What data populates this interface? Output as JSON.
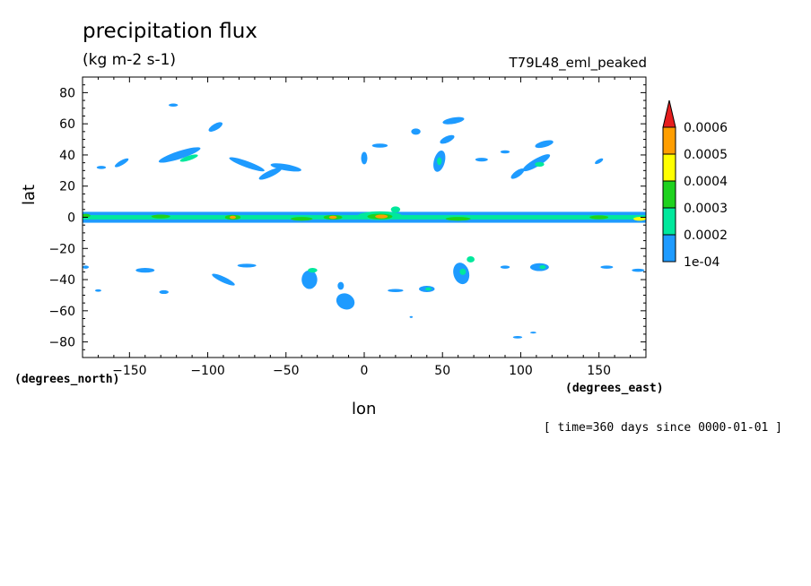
{
  "header": {
    "title": "precipitation flux",
    "units": "(kg m-2 s-1)",
    "run": "T79L48_eml_peaked"
  },
  "axes": {
    "ylabel": "lat",
    "xlabel": "lon",
    "yunits": "(degrees_north)",
    "xunits": "(degrees_east)"
  },
  "footer": {
    "timestamp": "[ time=360 days since 0000-01-01 ]"
  },
  "chart_data": {
    "type": "heatmap",
    "title": "precipitation flux",
    "xlabel": "lon",
    "ylabel": "lat",
    "xlim": [
      -180,
      180
    ],
    "ylim": [
      -90,
      90
    ],
    "xticks": [
      -150,
      -100,
      -50,
      0,
      50,
      100,
      150
    ],
    "yticks": [
      80,
      60,
      40,
      20,
      0,
      -20,
      -40,
      -60,
      -80
    ],
    "colorbar": {
      "levels": [
        "1e-04",
        "0.0002",
        "0.0003",
        "0.0004",
        "0.0005",
        "0.0006"
      ],
      "colors": [
        "#1e9bff",
        "#00e89c",
        "#1ed21e",
        "#ffff00",
        "#ff9e00",
        "#e61e1e"
      ],
      "extend": "max"
    },
    "features": [
      {
        "kind": "band",
        "lon": [
          -180,
          180
        ],
        "lat": [
          -3.5,
          3.5
        ],
        "level": 0
      },
      {
        "kind": "band",
        "lon": [
          -180,
          180
        ],
        "lat": [
          -1.4,
          1.4
        ],
        "level": 1
      },
      {
        "kind": "blob",
        "lon": 10,
        "lat": 1,
        "rx": 14,
        "ry": 2.8,
        "level": 1
      },
      {
        "kind": "blob",
        "lon": 10,
        "lat": 0.5,
        "rx": 8,
        "ry": 1.8,
        "level": 2
      },
      {
        "kind": "blob",
        "lon": 11,
        "lat": 0.5,
        "rx": 4,
        "ry": 1.2,
        "level": 4
      },
      {
        "kind": "blob",
        "lon": 20,
        "lat": 5,
        "rx": 3,
        "ry": 2,
        "level": 1
      },
      {
        "kind": "blob",
        "lon": -20,
        "lat": 0,
        "rx": 6,
        "ry": 1.5,
        "level": 2
      },
      {
        "kind": "blob",
        "lon": -20,
        "lat": 0,
        "rx": 2.5,
        "ry": 1,
        "level": 4
      },
      {
        "kind": "blob",
        "lon": -84,
        "lat": 0,
        "rx": 5,
        "ry": 1.6,
        "level": 2
      },
      {
        "kind": "blob",
        "lon": -84,
        "lat": 0,
        "rx": 2,
        "ry": 1,
        "level": 4
      },
      {
        "kind": "blob",
        "lon": -40,
        "lat": -1,
        "rx": 7,
        "ry": 1.2,
        "level": 2
      },
      {
        "kind": "blob",
        "lon": 60,
        "lat": -1,
        "rx": 8,
        "ry": 1.2,
        "level": 2
      },
      {
        "kind": "blob",
        "lon": 150,
        "lat": 0,
        "rx": 6,
        "ry": 1.2,
        "level": 2
      },
      {
        "kind": "blob",
        "lon": -130,
        "lat": 0.5,
        "rx": 6,
        "ry": 1.2,
        "level": 2
      },
      {
        "kind": "blob",
        "lon": 176,
        "lat": -1,
        "rx": 4,
        "ry": 1.2,
        "level": 3
      },
      {
        "kind": "blob",
        "lon": -178,
        "lat": 1,
        "rx": 3,
        "ry": 1.2,
        "level": 2
      },
      {
        "kind": "blob",
        "lon": -118,
        "lat": 40,
        "rx": 14,
        "ry": 2.5,
        "rot": -18,
        "level": 0
      },
      {
        "kind": "blob",
        "lon": -112,
        "lat": 38,
        "rx": 6,
        "ry": 1.5,
        "rot": -18,
        "level": 1
      },
      {
        "kind": "blob",
        "lon": -95,
        "lat": 58,
        "rx": 5,
        "ry": 2,
        "rot": -30,
        "level": 0
      },
      {
        "kind": "blob",
        "lon": -75,
        "lat": 34,
        "rx": 12,
        "ry": 2,
        "rot": 20,
        "level": 0
      },
      {
        "kind": "blob",
        "lon": -50,
        "lat": 32,
        "rx": 10,
        "ry": 2,
        "rot": 10,
        "level": 0
      },
      {
        "kind": "blob",
        "lon": -60,
        "lat": 28,
        "rx": 8,
        "ry": 2,
        "rot": -25,
        "level": 0
      },
      {
        "kind": "blob",
        "lon": -155,
        "lat": 35,
        "rx": 5,
        "ry": 1.5,
        "rot": -30,
        "level": 0
      },
      {
        "kind": "blob",
        "lon": -168,
        "lat": 32,
        "rx": 3,
        "ry": 1,
        "level": 0
      },
      {
        "kind": "blob",
        "lon": -122,
        "lat": 72,
        "rx": 3,
        "ry": 1,
        "level": 0
      },
      {
        "kind": "blob",
        "lon": 0,
        "lat": 38,
        "rx": 2,
        "ry": 4,
        "level": 0
      },
      {
        "kind": "blob",
        "lon": 10,
        "lat": 46,
        "rx": 5,
        "ry": 1.3,
        "level": 0
      },
      {
        "kind": "blob",
        "lon": 33,
        "lat": 55,
        "rx": 3,
        "ry": 2,
        "level": 0
      },
      {
        "kind": "blob",
        "lon": 48,
        "lat": 36,
        "rx": 3.5,
        "ry": 7,
        "rot": 15,
        "level": 0
      },
      {
        "kind": "blob",
        "lon": 48,
        "lat": 36,
        "rx": 1.5,
        "ry": 2.5,
        "level": 1
      },
      {
        "kind": "blob",
        "lon": 57,
        "lat": 62,
        "rx": 7,
        "ry": 2,
        "rot": -10,
        "level": 0
      },
      {
        "kind": "blob",
        "lon": 53,
        "lat": 50,
        "rx": 5,
        "ry": 2,
        "rot": -25,
        "level": 0
      },
      {
        "kind": "blob",
        "lon": 110,
        "lat": 35,
        "rx": 10,
        "ry": 2.5,
        "rot": -30,
        "level": 0
      },
      {
        "kind": "blob",
        "lon": 112,
        "lat": 34,
        "rx": 3,
        "ry": 1.5,
        "level": 1
      },
      {
        "kind": "blob",
        "lon": 115,
        "lat": 47,
        "rx": 6,
        "ry": 2,
        "rot": -15,
        "level": 0
      },
      {
        "kind": "blob",
        "lon": 98,
        "lat": 28,
        "rx": 5,
        "ry": 2,
        "rot": -35,
        "level": 0
      },
      {
        "kind": "blob",
        "lon": 75,
        "lat": 37,
        "rx": 4,
        "ry": 1.2,
        "level": 0
      },
      {
        "kind": "blob",
        "lon": 150,
        "lat": 36,
        "rx": 3,
        "ry": 1.2,
        "rot": -30,
        "level": 0
      },
      {
        "kind": "blob",
        "lon": 90,
        "lat": 42,
        "rx": 3,
        "ry": 1,
        "level": 0
      },
      {
        "kind": "blob",
        "lon": -140,
        "lat": -34,
        "rx": 6,
        "ry": 1.5,
        "level": 0
      },
      {
        "kind": "blob",
        "lon": -90,
        "lat": -40,
        "rx": 8,
        "ry": 1.8,
        "rot": 25,
        "level": 0
      },
      {
        "kind": "blob",
        "lon": -75,
        "lat": -31,
        "rx": 6,
        "ry": 1.2,
        "level": 0
      },
      {
        "kind": "blob",
        "lon": -128,
        "lat": -48,
        "rx": 3,
        "ry": 1.2,
        "level": 0
      },
      {
        "kind": "blob",
        "lon": -170,
        "lat": -47,
        "rx": 2,
        "ry": 0.8,
        "level": 0
      },
      {
        "kind": "blob",
        "lon": -35,
        "lat": -40,
        "rx": 5,
        "ry": 6,
        "level": 0
      },
      {
        "kind": "blob",
        "lon": -33,
        "lat": -34,
        "rx": 3,
        "ry": 1.5,
        "level": 1
      },
      {
        "kind": "blob",
        "lon": -12,
        "lat": -54,
        "rx": 6,
        "ry": 5,
        "rot": 25,
        "level": 0
      },
      {
        "kind": "blob",
        "lon": -15,
        "lat": -44,
        "rx": 2,
        "ry": 2.5,
        "level": 0
      },
      {
        "kind": "blob",
        "lon": 40,
        "lat": -46,
        "rx": 5,
        "ry": 2,
        "level": 0
      },
      {
        "kind": "blob",
        "lon": 41,
        "lat": -46,
        "rx": 2,
        "ry": 1,
        "level": 1
      },
      {
        "kind": "blob",
        "lon": 62,
        "lat": -36,
        "rx": 5,
        "ry": 7,
        "rot": -15,
        "level": 0
      },
      {
        "kind": "blob",
        "lon": 63,
        "lat": -35,
        "rx": 2,
        "ry": 2,
        "level": 1
      },
      {
        "kind": "blob",
        "lon": 68,
        "lat": -27,
        "rx": 2.5,
        "ry": 2,
        "level": 1
      },
      {
        "kind": "blob",
        "lon": 112,
        "lat": -32,
        "rx": 6,
        "ry": 2.5,
        "level": 0
      },
      {
        "kind": "blob",
        "lon": 114,
        "lat": -32,
        "rx": 2,
        "ry": 1.2,
        "level": 1
      },
      {
        "kind": "blob",
        "lon": 90,
        "lat": -32,
        "rx": 3,
        "ry": 1,
        "level": 0
      },
      {
        "kind": "blob",
        "lon": 155,
        "lat": -32,
        "rx": 4,
        "ry": 1,
        "level": 0
      },
      {
        "kind": "blob",
        "lon": 175,
        "lat": -34,
        "rx": 4,
        "ry": 1,
        "level": 0
      },
      {
        "kind": "blob",
        "lon": -178,
        "lat": -32,
        "rx": 2,
        "ry": 1,
        "level": 0
      },
      {
        "kind": "blob",
        "lon": 20,
        "lat": -47,
        "rx": 5,
        "ry": 1,
        "level": 0
      },
      {
        "kind": "blob",
        "lon": 98,
        "lat": -77,
        "rx": 3,
        "ry": 0.8,
        "level": 0
      },
      {
        "kind": "blob",
        "lon": 108,
        "lat": -74,
        "rx": 2,
        "ry": 0.6,
        "level": 0
      },
      {
        "kind": "blob",
        "lon": 30,
        "lat": -64,
        "rx": 1,
        "ry": 0.6,
        "level": 0
      }
    ]
  }
}
